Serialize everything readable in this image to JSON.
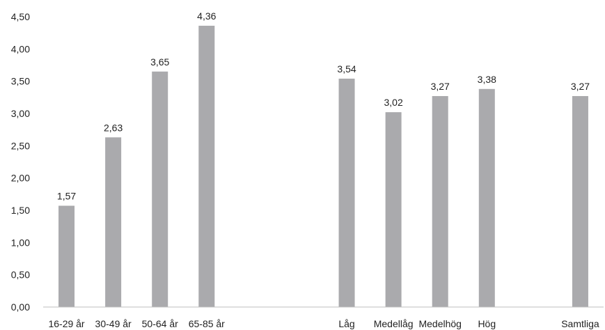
{
  "chart_data": {
    "type": "bar",
    "categories": [
      "16-29 år",
      "30-49 år",
      "50-64 år",
      "65-85 år",
      "",
      "",
      "Låg",
      "Medellåg",
      "Medelhög",
      "Hög",
      "",
      "Samtliga"
    ],
    "values": [
      1.57,
      2.63,
      3.65,
      4.36,
      null,
      null,
      3.54,
      3.02,
      3.27,
      3.38,
      null,
      3.27
    ],
    "value_labels": [
      "1,57",
      "2,63",
      "3,65",
      "4,36",
      "",
      "",
      "3,54",
      "3,02",
      "3,27",
      "3,38",
      "",
      "3,27"
    ],
    "y_ticks": [
      "0,00",
      "0,50",
      "1,00",
      "1,50",
      "2,00",
      "2,50",
      "3,00",
      "3,50",
      "4,00",
      "4,50"
    ],
    "ylim": [
      0,
      4.5
    ],
    "grid": false,
    "legend": "none",
    "title": "",
    "xlabel": "",
    "ylabel": "",
    "bar_color": "#aaaaad",
    "axis_color": "#bfbfbf"
  }
}
